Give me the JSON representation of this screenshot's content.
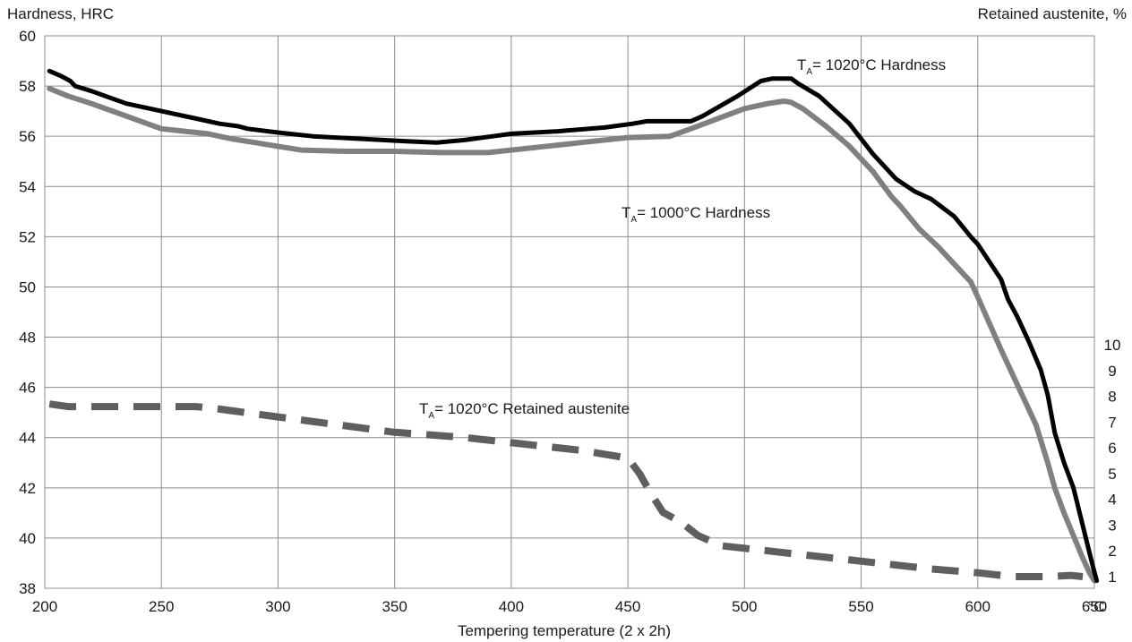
{
  "chart_data": {
    "type": "line",
    "ylabel": "Hardness, HRC",
    "y2label": "Retained austenite, %",
    "xlabel": "Tempering temperature (2 x 2h)",
    "xunit": "°C",
    "xlim": [
      200,
      650
    ],
    "ylim": [
      38,
      60
    ],
    "y2lim": [
      0,
      10
    ],
    "xticks": [
      200,
      250,
      300,
      350,
      400,
      450,
      500,
      550,
      600,
      650
    ],
    "yticks": [
      38,
      40,
      42,
      44,
      46,
      48,
      50,
      52,
      54,
      56,
      58,
      60
    ],
    "y2ticks": [
      1,
      2,
      3,
      4,
      5,
      6,
      7,
      8,
      9,
      10
    ],
    "grid": true,
    "series": [
      {
        "name": "TA= 1020°C Hardness",
        "name_main": "T",
        "name_sub": "A",
        "name_rest": "= 1020°C Hardness",
        "axis": "left",
        "color": "#000000",
        "style": "solid",
        "x": [
          202,
          207,
          211,
          213,
          220,
          235,
          250,
          265,
          275,
          283,
          287,
          300,
          315,
          335,
          355,
          368,
          380,
          392,
          400,
          420,
          440,
          452,
          458,
          470,
          477,
          482,
          497,
          507,
          512,
          520,
          523,
          532,
          545,
          555,
          565,
          573,
          580,
          590,
          597,
          600,
          605,
          610,
          613,
          617,
          622,
          627,
          630,
          633,
          637,
          641,
          645,
          649,
          651
        ],
        "values": [
          58.6,
          58.4,
          58.2,
          58.0,
          57.8,
          57.3,
          57.0,
          56.7,
          56.5,
          56.4,
          56.3,
          56.15,
          56.0,
          55.9,
          55.8,
          55.75,
          55.85,
          56.0,
          56.1,
          56.2,
          56.35,
          56.5,
          56.6,
          56.6,
          56.6,
          56.8,
          57.6,
          58.2,
          58.3,
          58.3,
          58.1,
          57.6,
          56.5,
          55.3,
          54.3,
          53.8,
          53.5,
          52.8,
          52.0,
          51.7,
          51.0,
          50.3,
          49.5,
          48.8,
          47.8,
          46.7,
          45.7,
          44.2,
          43.0,
          42.0,
          40.5,
          39.0,
          38.3
        ]
      },
      {
        "name": "TA= 1000°C Hardness",
        "name_main": "T",
        "name_sub": "A",
        "name_rest": "= 1000°C Hardness",
        "axis": "left",
        "color": "#808080",
        "style": "solid",
        "x": [
          202,
          210,
          220,
          235,
          250,
          260,
          270,
          280,
          290,
          300,
          310,
          330,
          350,
          370,
          390,
          395,
          410,
          430,
          450,
          468,
          477,
          490,
          500,
          510,
          517,
          520,
          525,
          535,
          545,
          555,
          563,
          567,
          575,
          583,
          590,
          597,
          600,
          610,
          620,
          625,
          630,
          633,
          637,
          641,
          645,
          648,
          650
        ],
        "values": [
          57.9,
          57.6,
          57.3,
          56.8,
          56.3,
          56.2,
          56.1,
          55.9,
          55.75,
          55.6,
          55.45,
          55.4,
          55.4,
          55.35,
          55.35,
          55.4,
          55.55,
          55.75,
          55.95,
          56.0,
          56.3,
          56.75,
          57.1,
          57.3,
          57.4,
          57.35,
          57.1,
          56.4,
          55.6,
          54.6,
          53.6,
          53.2,
          52.3,
          51.6,
          50.9,
          50.2,
          49.6,
          47.5,
          45.5,
          44.5,
          43.0,
          42.0,
          41.0,
          40.1,
          39.2,
          38.6,
          38.3
        ]
      },
      {
        "name": "TA= 1020°C Retained austenite",
        "name_main": "T",
        "name_sub": "A",
        "name_rest": "= 1020°C Retained austenite",
        "axis": "right",
        "color": "#5f5f5f",
        "style": "dashed",
        "x": [
          202,
          210,
          230,
          245,
          265,
          275,
          300,
          325,
          350,
          380,
          400,
          430,
          450,
          455,
          460,
          465,
          473,
          480,
          490,
          510,
          530,
          560,
          580,
          600,
          615,
          630,
          640,
          645
        ],
        "values": [
          7.7,
          7.6,
          7.6,
          7.6,
          7.6,
          7.5,
          7.2,
          6.9,
          6.6,
          6.4,
          6.2,
          5.9,
          5.6,
          5.0,
          4.2,
          3.5,
          3.1,
          2.6,
          2.2,
          2.0,
          1.8,
          1.5,
          1.3,
          1.15,
          1.0,
          1.0,
          1.05,
          1.0
        ]
      }
    ]
  }
}
